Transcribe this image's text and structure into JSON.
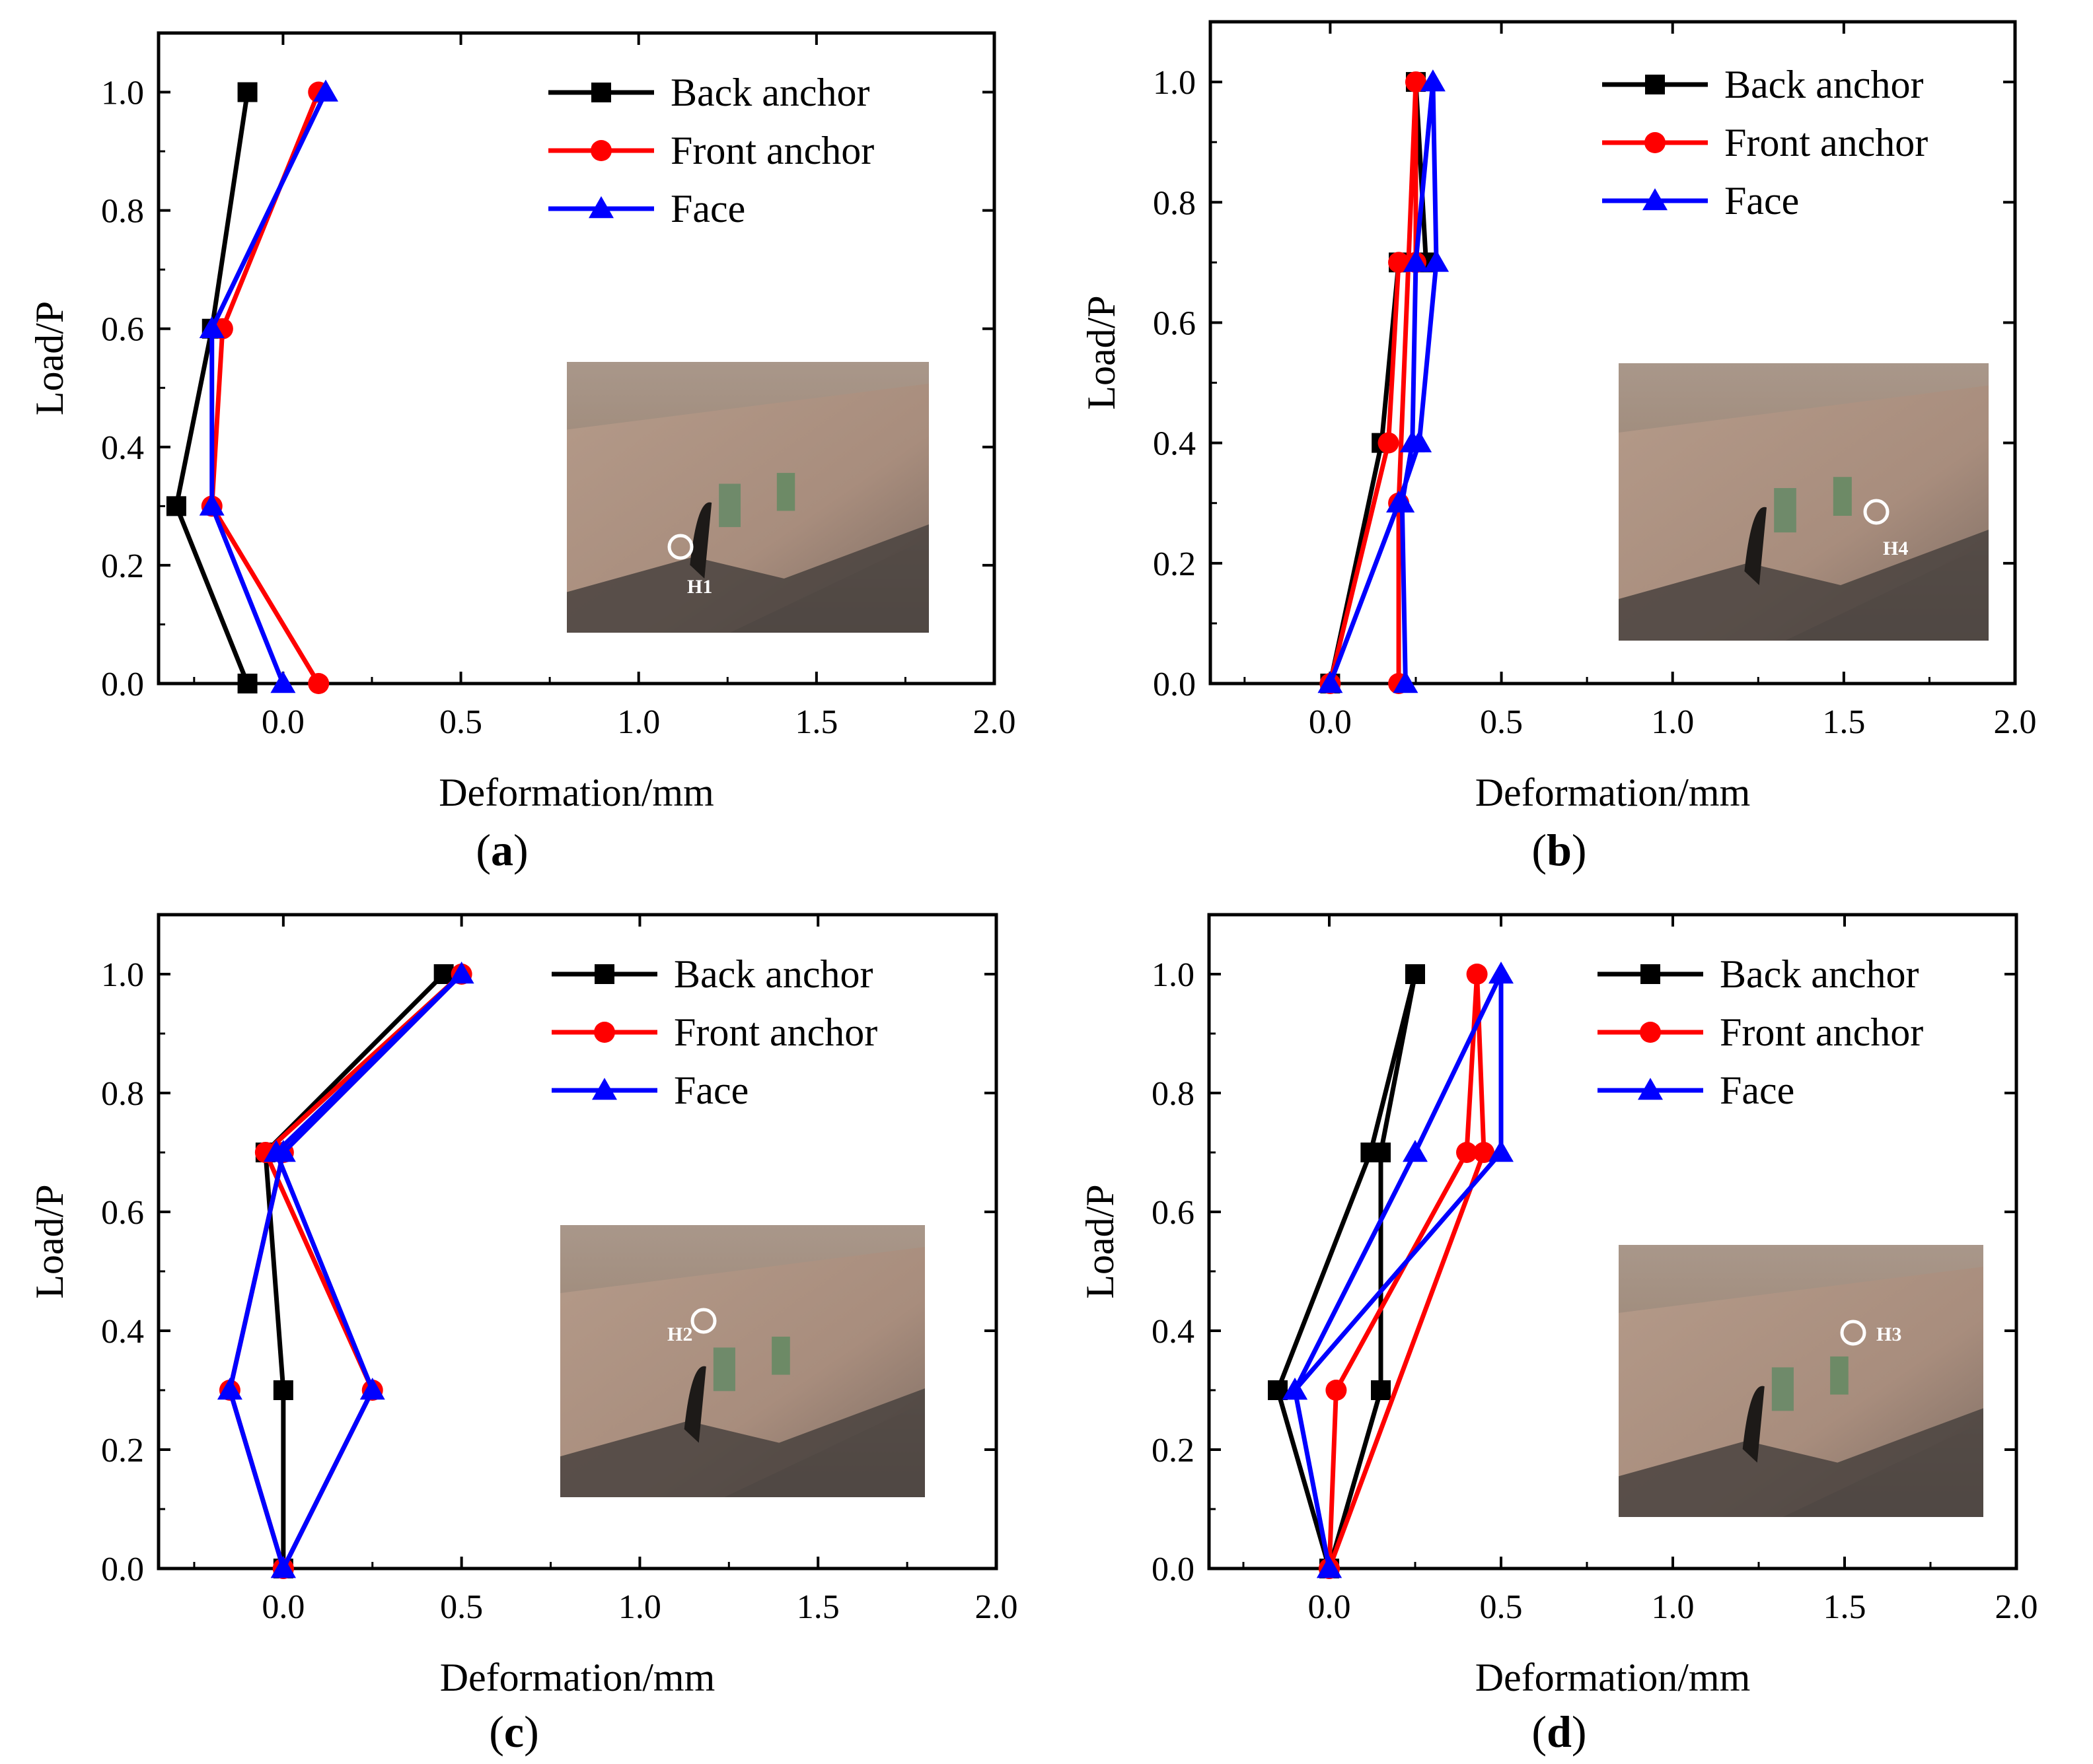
{
  "figure": {
    "colors": {
      "back": "#000000",
      "front": "#ff0000",
      "face": "#0000ff"
    }
  },
  "chart_data": [
    {
      "type": "line",
      "panel": "a",
      "caption": {
        "open": "(",
        "letter": "a",
        "close": ")"
      },
      "xlabel": "Deformation/mm",
      "ylabel": "Load/P",
      "xlim": [
        -0.35,
        2.0
      ],
      "ylim": [
        0.0,
        1.1
      ],
      "xticks": [
        "0.0",
        "0.5",
        "1.0",
        "1.5",
        "2.0"
      ],
      "yticks": [
        "0.0",
        "0.2",
        "0.4",
        "0.6",
        "0.8",
        "1.0"
      ],
      "legend_position": "top-right",
      "inset_label": "H1",
      "series": [
        {
          "name": "Back anchor",
          "color": "#000000",
          "marker": "square",
          "x": [
            -0.1,
            -0.3,
            -0.2,
            -0.1
          ],
          "y": [
            0.0,
            0.3,
            0.6,
            1.0
          ]
        },
        {
          "name": "Front anchor",
          "color": "#ff0000",
          "marker": "circle",
          "x": [
            0.1,
            -0.2,
            -0.17,
            0.1
          ],
          "y": [
            0.0,
            0.3,
            0.6,
            1.0
          ]
        },
        {
          "name": "Face",
          "color": "#0000ff",
          "marker": "triangle",
          "x": [
            0.0,
            -0.2,
            -0.2,
            0.12
          ],
          "y": [
            0.0,
            0.3,
            0.6,
            1.0
          ]
        }
      ]
    },
    {
      "type": "line",
      "panel": "b",
      "caption": {
        "open": "(",
        "letter": "b",
        "close": ")"
      },
      "xlabel": "Deformation/mm",
      "ylabel": "Load/P",
      "xlim": [
        -0.35,
        2.0
      ],
      "ylim": [
        0.0,
        1.1
      ],
      "xticks": [
        "0.0",
        "0.5",
        "1.0",
        "1.5",
        "2.0"
      ],
      "yticks": [
        "0.0",
        "0.2",
        "0.4",
        "0.6",
        "0.8",
        "1.0"
      ],
      "legend_position": "top-right",
      "inset_label": "H4",
      "series": [
        {
          "name": "Back anchor",
          "color": "#000000",
          "marker": "square",
          "x": [
            0.0,
            0.15,
            0.2,
            0.28,
            0.25
          ],
          "y": [
            0.0,
            0.4,
            0.7,
            0.7,
            1.0
          ]
        },
        {
          "name": "Front anchor",
          "color": "#ff0000",
          "marker": "circle",
          "x": [
            0.0,
            0.17,
            0.2,
            0.25,
            0.25,
            0.2,
            0.2
          ],
          "y": [
            0.0,
            0.4,
            0.7,
            0.7,
            1.0,
            0.3,
            0.0
          ]
        },
        {
          "name": "Face",
          "color": "#0000ff",
          "marker": "triangle",
          "x": [
            0.0,
            0.2,
            0.26,
            0.31,
            0.3,
            0.25,
            0.24,
            0.21,
            0.22
          ],
          "y": [
            0.0,
            0.3,
            0.4,
            0.7,
            1.0,
            0.7,
            0.4,
            0.3,
            0.0
          ]
        }
      ]
    },
    {
      "type": "line",
      "panel": "c",
      "caption": {
        "open": "(",
        "letter": "c",
        "close": ")"
      },
      "xlabel": "Deformation/mm",
      "ylabel": "Load/P",
      "xlim": [
        -0.35,
        2.0
      ],
      "ylim": [
        0.0,
        1.1
      ],
      "xticks": [
        "0.0",
        "0.5",
        "1.0",
        "1.5",
        "2.0"
      ],
      "yticks": [
        "0.0",
        "0.2",
        "0.4",
        "0.6",
        "0.8",
        "1.0"
      ],
      "legend_position": "top-right",
      "inset_label": "H2",
      "series": [
        {
          "name": "Back anchor",
          "color": "#000000",
          "marker": "square",
          "x": [
            0.0,
            0.0,
            -0.05,
            0.45
          ],
          "y": [
            0.0,
            0.3,
            0.7,
            1.0
          ]
        },
        {
          "name": "Front anchor",
          "color": "#ff0000",
          "marker": "circle",
          "x": [
            0.0,
            0.25,
            -0.05,
            0.5,
            0.0,
            -0.15,
            0.0
          ],
          "y": [
            0.0,
            0.3,
            0.7,
            1.0,
            0.7,
            0.3,
            0.0
          ]
        },
        {
          "name": "Face",
          "color": "#0000ff",
          "marker": "triangle",
          "x": [
            0.0,
            -0.15,
            0.0,
            0.5,
            -0.02,
            0.25,
            0.0
          ],
          "y": [
            0.0,
            0.3,
            0.7,
            1.0,
            0.7,
            0.3,
            0.0
          ]
        }
      ]
    },
    {
      "type": "line",
      "panel": "d",
      "caption": {
        "open": "(",
        "letter": "d",
        "close": ")"
      },
      "xlabel": "Deformation/mm",
      "ylabel": "Load/P",
      "xlim": [
        -0.35,
        2.0
      ],
      "ylim": [
        0.0,
        1.1
      ],
      "xticks": [
        "0.0",
        "0.5",
        "1.0",
        "1.5",
        "2.0"
      ],
      "yticks": [
        "0.0",
        "0.2",
        "0.4",
        "0.6",
        "0.8",
        "1.0"
      ],
      "legend_position": "top-right",
      "inset_label": "H3",
      "series": [
        {
          "name": "Back anchor",
          "color": "#000000",
          "marker": "square",
          "x": [
            0.0,
            -0.15,
            0.12,
            0.25,
            0.15,
            0.15,
            0.0
          ],
          "y": [
            0.0,
            0.3,
            0.7,
            1.0,
            0.7,
            0.3,
            0.0
          ]
        },
        {
          "name": "Front anchor",
          "color": "#ff0000",
          "marker": "circle",
          "x": [
            0.0,
            0.02,
            0.4,
            0.43,
            0.45,
            0.0
          ],
          "y": [
            0.0,
            0.3,
            0.7,
            1.0,
            0.7,
            0.0
          ]
        },
        {
          "name": "Face",
          "color": "#0000ff",
          "marker": "triangle",
          "x": [
            0.0,
            -0.1,
            0.25,
            0.5,
            0.5,
            -0.1,
            0.0
          ],
          "y": [
            0.0,
            0.3,
            0.7,
            1.0,
            0.7,
            0.3,
            0.0
          ]
        }
      ]
    }
  ]
}
